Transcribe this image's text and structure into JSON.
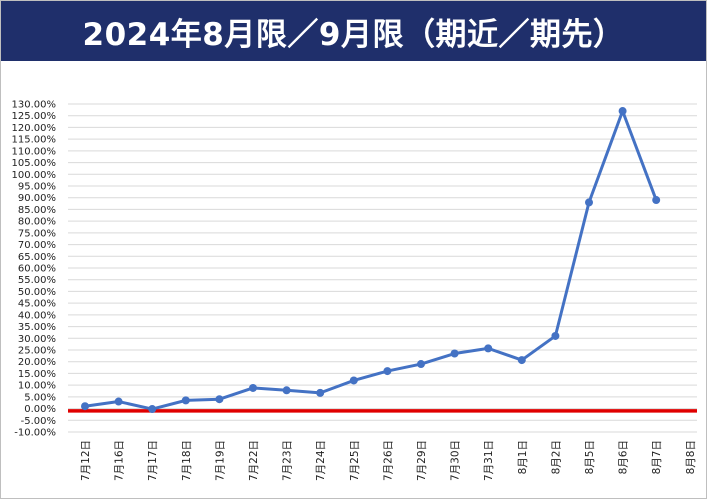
{
  "chart_data": {
    "type": "line",
    "title": "2024年8月限／9月限（期近／期先）",
    "xlabel": "",
    "ylabel": "",
    "categories": [
      "7月12日",
      "7月16日",
      "7月17日",
      "7月18日",
      "7月19日",
      "7月22日",
      "7月23日",
      "7月24日",
      "7月25日",
      "7月26日",
      "7月29日",
      "7月30日",
      "7月31日",
      "8月1日",
      "8月2日",
      "8月5日",
      "8月6日",
      "8月7日",
      "8月8日"
    ],
    "series": [
      {
        "color": "#4472c4",
        "values": [
          1.0,
          3.0,
          -0.2,
          3.5,
          4.0,
          8.8,
          7.8,
          6.7,
          12.0,
          16.0,
          19.0,
          23.5,
          25.7,
          20.7,
          31.0,
          88.0,
          127.0,
          89.0,
          null
        ]
      }
    ],
    "reference_line": {
      "value": -1.0,
      "color": "#e00000"
    },
    "ylim": [
      -10,
      130
    ],
    "ytick_step": 5,
    "ytick_format": "percent_2dp",
    "grid": true,
    "legend": "none"
  },
  "colors": {
    "title_bg": "#1f2f6b",
    "title_text": "#ffffff",
    "grid": "#d9d9d9"
  }
}
